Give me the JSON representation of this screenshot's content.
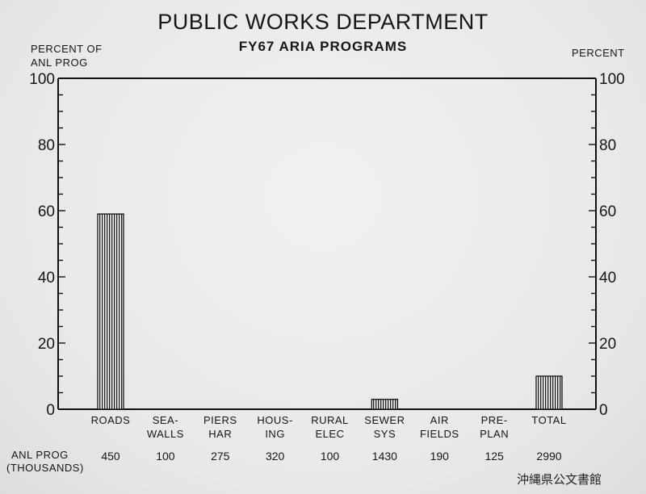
{
  "chart_data": {
    "type": "bar",
    "title": "PUBLIC WORKS DEPARTMENT",
    "subtitle": "FY67 ARIA PROGRAMS",
    "ylabel_left": "PERCENT OF\nANL PROG",
    "ylabel_right": "PERCENT",
    "ylim": [
      0,
      100
    ],
    "yticks": [
      0,
      20,
      40,
      60,
      80,
      100
    ],
    "categories": [
      [
        "ROADS"
      ],
      [
        "SEA-",
        "WALLS"
      ],
      [
        "PIERS",
        "HAR"
      ],
      [
        "HOUS-",
        "ING"
      ],
      [
        "RURAL",
        "ELEC"
      ],
      [
        "SEWER",
        "SYS"
      ],
      [
        "AIR",
        "FIELDS"
      ],
      [
        "PRE-",
        "PLAN"
      ],
      [
        "TOTAL"
      ]
    ],
    "values": [
      59,
      0,
      0,
      0,
      0,
      3,
      0,
      0,
      10
    ],
    "anl_prog_label": [
      "ANL PROG",
      "(THOUSANDS)"
    ],
    "anl_prog_thousands": [
      "450",
      "100",
      "275",
      "320",
      "100",
      "1430",
      "190",
      "125",
      "2990"
    ]
  },
  "stamp": "沖縄県公文書館"
}
